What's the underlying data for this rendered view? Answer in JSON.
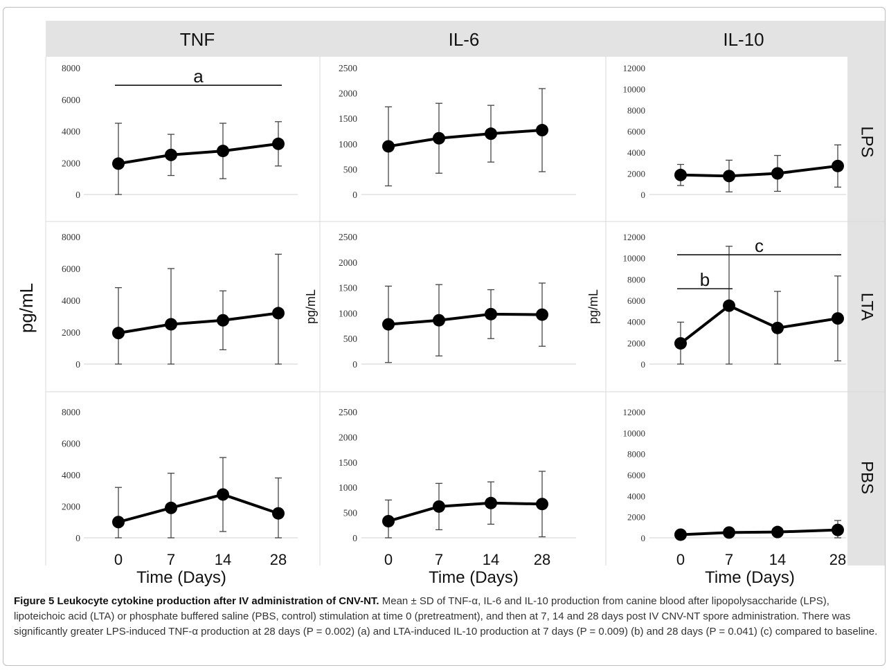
{
  "columns": [
    "TNF",
    "IL-6",
    "IL-10"
  ],
  "rows": [
    "LPS",
    "LTA",
    "PBS"
  ],
  "colors": {
    "header_bg": "#e3e3e3",
    "line": "#000000",
    "error_bar": "#444444",
    "grid": "#d9d9d9"
  },
  "ylabels": {
    "big": "pg/mL",
    "small": "pg/mL"
  },
  "xlabel": "Time (Days)",
  "chart_data": [
    {
      "type": "line",
      "column": "TNF",
      "row": "LPS",
      "ylim": [
        0,
        8000
      ],
      "yticks": [
        "0",
        "2000",
        "4000",
        "6000",
        "8000"
      ],
      "x": [
        "0",
        "7",
        "14",
        "28"
      ],
      "values": [
        1950,
        2500,
        2750,
        3200
      ],
      "errors": [
        2550,
        1300,
        1750,
        1400
      ],
      "annotations": [
        {
          "label": "a",
          "x_from": 0,
          "x_to": 3,
          "y": 6900
        }
      ]
    },
    {
      "type": "line",
      "column": "IL-6",
      "row": "LPS",
      "ylim": [
        0,
        2500
      ],
      "yticks": [
        "0",
        "500",
        "1000",
        "1500",
        "2000",
        "2500"
      ],
      "x": [
        "0",
        "7",
        "14",
        "28"
      ],
      "values": [
        950,
        1110,
        1200,
        1270
      ],
      "errors": [
        780,
        690,
        560,
        820
      ],
      "annotations": []
    },
    {
      "type": "line",
      "column": "IL-10",
      "row": "LPS",
      "ylim": [
        0,
        12000
      ],
      "yticks": [
        "0",
        "2000",
        "4000",
        "6000",
        "8000",
        "10000",
        "12000"
      ],
      "x": [
        "0",
        "7",
        "14",
        "28"
      ],
      "values": [
        1850,
        1750,
        2000,
        2700
      ],
      "errors": [
        1000,
        1500,
        1700,
        2000
      ],
      "annotations": []
    },
    {
      "type": "line",
      "column": "TNF",
      "row": "LTA",
      "ylim": [
        0,
        8000
      ],
      "yticks": [
        "0",
        "2000",
        "4000",
        "6000",
        "8000"
      ],
      "x": [
        "0",
        "7",
        "14",
        "28"
      ],
      "values": [
        1950,
        2500,
        2750,
        3200
      ],
      "errors": [
        2850,
        3500,
        1850,
        3700
      ],
      "annotations": []
    },
    {
      "type": "line",
      "column": "IL-6",
      "row": "LTA",
      "ylim": [
        0,
        2500
      ],
      "yticks": [
        "0",
        "500",
        "1000",
        "1500",
        "2000",
        "2500"
      ],
      "x": [
        "0",
        "7",
        "14",
        "28"
      ],
      "values": [
        780,
        860,
        980,
        970
      ],
      "errors": [
        750,
        700,
        480,
        620
      ],
      "annotations": []
    },
    {
      "type": "line",
      "column": "IL-10",
      "row": "LTA",
      "ylim": [
        0,
        12000
      ],
      "yticks": [
        "0",
        "2000",
        "4000",
        "6000",
        "8000",
        "10000",
        "12000"
      ],
      "x": [
        "0",
        "7",
        "14",
        "28"
      ],
      "values": [
        1950,
        5500,
        3400,
        4300
      ],
      "errors": [
        2000,
        5600,
        3450,
        4000
      ],
      "annotations": [
        {
          "label": "c",
          "x_from": 0,
          "x_to": 3,
          "y": 10300
        },
        {
          "label": "b",
          "x_from": 0,
          "x_to": 1,
          "y": 7100
        }
      ]
    },
    {
      "type": "line",
      "column": "TNF",
      "row": "PBS",
      "ylim": [
        0,
        8000
      ],
      "yticks": [
        "0",
        "2000",
        "4000",
        "6000",
        "8000"
      ],
      "x": [
        "0",
        "7",
        "14",
        "28"
      ],
      "values": [
        1000,
        1900,
        2750,
        1550
      ],
      "errors": [
        2200,
        2200,
        2350,
        2250
      ],
      "annotations": []
    },
    {
      "type": "line",
      "column": "IL-6",
      "row": "PBS",
      "ylim": [
        0,
        2500
      ],
      "yticks": [
        "0",
        "500",
        "1000",
        "1500",
        "2000",
        "2500"
      ],
      "x": [
        "0",
        "7",
        "14",
        "28"
      ],
      "values": [
        330,
        620,
        690,
        670
      ],
      "errors": [
        420,
        460,
        420,
        650
      ],
      "annotations": []
    },
    {
      "type": "line",
      "column": "IL-10",
      "row": "PBS",
      "ylim": [
        0,
        12000
      ],
      "yticks": [
        "0",
        "2000",
        "4000",
        "6000",
        "8000",
        "10000",
        "12000"
      ],
      "x": [
        "0",
        "7",
        "14",
        "28"
      ],
      "values": [
        300,
        500,
        550,
        750
      ],
      "errors": [
        0,
        0,
        0,
        900
      ],
      "annotations": []
    }
  ],
  "caption": {
    "title": "Figure 5  Leukocyte cytokine production after IV administration of CNV-NT.",
    "body": "Mean ± SD of TNF-α, IL-6 and IL-10 production from canine blood after lipopolysaccharide (LPS), lipoteichoic acid (LTA) or phosphate buffered saline (PBS, control) stimulation at time 0 (pretreatment), and then at 7, 14 and 28 days post IV CNV-NT spore administration. There was significantly greater LPS-induced TNF-α production at 28 days (P = 0.002) (a) and LTA-induced IL-10 production at 7 days (P = 0.009) (b) and 28 days (P = 0.041) (c) compared to baseline."
  }
}
